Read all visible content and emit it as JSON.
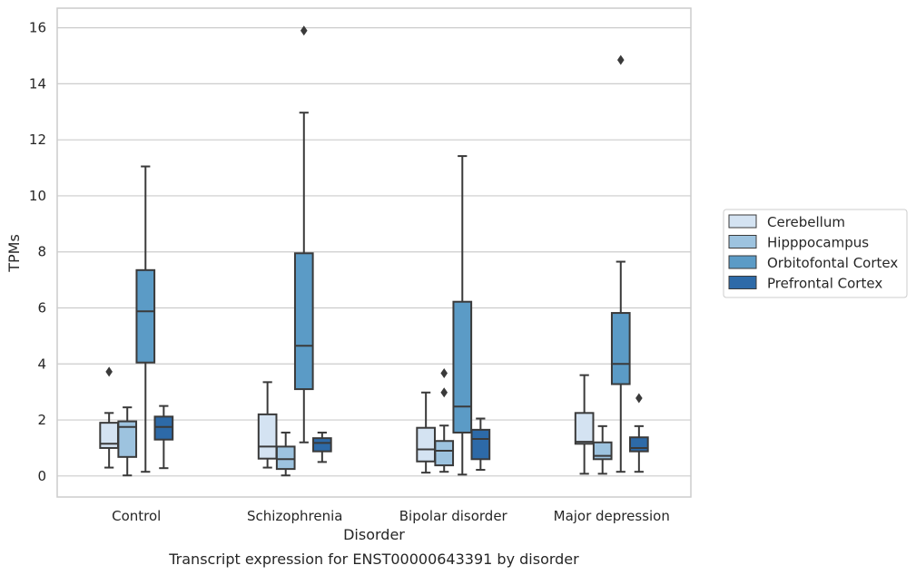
{
  "chart_data": {
    "type": "box",
    "title": "",
    "caption": "Transcript expression for ENST00000643391 by disorder",
    "xlabel": "Disorder",
    "ylabel": "TPMs",
    "ylim": [
      -0.75,
      16.7
    ],
    "yticks": [
      0,
      2,
      4,
      6,
      8,
      10,
      12,
      14,
      16
    ],
    "grid": "horizontal",
    "legend_position": "right",
    "categories": [
      "Control",
      "Schizophrenia",
      "Bipolar disorder",
      "Major depression"
    ],
    "series": [
      {
        "name": "Cerebellum",
        "color": "#d4e3f2",
        "boxes": [
          {
            "whislo": 0.3,
            "q1": 1.0,
            "med": 1.15,
            "q3": 1.9,
            "whishi": 2.25,
            "fliers": [
              3.72
            ]
          },
          {
            "whislo": 0.3,
            "q1": 0.62,
            "med": 1.05,
            "q3": 2.2,
            "whishi": 3.35,
            "fliers": []
          },
          {
            "whislo": 0.12,
            "q1": 0.52,
            "med": 0.95,
            "q3": 1.72,
            "whishi": 2.98,
            "fliers": []
          },
          {
            "whislo": 0.08,
            "q1": 1.15,
            "med": 1.22,
            "q3": 2.25,
            "whishi": 3.6,
            "fliers": []
          }
        ]
      },
      {
        "name": "Hipppocampus",
        "color": "#9dc3df",
        "boxes": [
          {
            "whislo": 0.02,
            "q1": 0.68,
            "med": 1.75,
            "q3": 1.95,
            "whishi": 2.45,
            "fliers": []
          },
          {
            "whislo": 0.02,
            "q1": 0.25,
            "med": 0.6,
            "q3": 1.05,
            "whishi": 1.55,
            "fliers": []
          },
          {
            "whislo": 0.15,
            "q1": 0.38,
            "med": 0.9,
            "q3": 1.25,
            "whishi": 1.8,
            "fliers": [
              2.98,
              3.67
            ]
          },
          {
            "whislo": 0.08,
            "q1": 0.6,
            "med": 0.72,
            "q3": 1.2,
            "whishi": 1.78,
            "fliers": []
          }
        ]
      },
      {
        "name": "Orbitofontal Cortex",
        "color": "#5b9bc6",
        "boxes": [
          {
            "whislo": 0.15,
            "q1": 4.05,
            "med": 5.88,
            "q3": 7.35,
            "whishi": 11.05,
            "fliers": []
          },
          {
            "whislo": 1.2,
            "q1": 3.1,
            "med": 4.65,
            "q3": 7.95,
            "whishi": 12.97,
            "fliers": [
              15.9
            ]
          },
          {
            "whislo": 0.05,
            "q1": 1.55,
            "med": 2.48,
            "q3": 6.22,
            "whishi": 11.42,
            "fliers": []
          },
          {
            "whislo": 0.15,
            "q1": 3.28,
            "med": 4.0,
            "q3": 5.82,
            "whishi": 7.65,
            "fliers": [
              14.85
            ]
          }
        ]
      },
      {
        "name": "Prefrontal Cortex",
        "color": "#2d6aa8",
        "boxes": [
          {
            "whislo": 0.28,
            "q1": 1.3,
            "med": 1.75,
            "q3": 2.12,
            "whishi": 2.5,
            "fliers": []
          },
          {
            "whislo": 0.5,
            "q1": 0.88,
            "med": 1.18,
            "q3": 1.35,
            "whishi": 1.55,
            "fliers": []
          },
          {
            "whislo": 0.22,
            "q1": 0.6,
            "med": 1.32,
            "q3": 1.65,
            "whishi": 2.05,
            "fliers": []
          },
          {
            "whislo": 0.15,
            "q1": 0.88,
            "med": 1.0,
            "q3": 1.38,
            "whishi": 1.78,
            "fliers": [
              2.78
            ]
          }
        ]
      }
    ]
  }
}
